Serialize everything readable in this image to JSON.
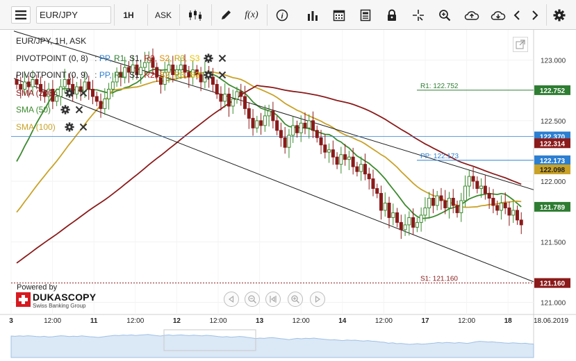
{
  "toolbar": {
    "symbol": "EUR/JPY",
    "timeframe": "1H",
    "side": "ASK",
    "fx_label": "f(x)"
  },
  "chart_header": {
    "title": "EUR/JPY, 1H, ASK"
  },
  "indicators": [
    {
      "name": "PIVOTPOINT (0, 8)",
      "colon": ":",
      "levels": [
        "PP,",
        "R1,",
        "S1,",
        "R2,",
        "S2,",
        "R3,",
        "S3"
      ],
      "colors": [
        "#2c7fd1",
        "#2e7d32",
        "#1f1f1f",
        "#b71c1c",
        "#e08a00",
        "#c9a400",
        "#e6c200"
      ]
    },
    {
      "name": "PIVOTPOINT (0, 9)",
      "colon": ":",
      "levels": [
        "PP,",
        "R1,",
        "S1,",
        "R2,",
        "S2,",
        "R3,",
        "S3"
      ],
      "colors": [
        "#2c7fd1",
        "#2e7d32",
        "#1f1f1f",
        "#b71c1c",
        "#e08a00",
        "#c9a400",
        "#e6c200"
      ]
    },
    {
      "name": "SMA (200)",
      "color": "#8b1a1a"
    },
    {
      "name": "SMA (50)",
      "color": "#3c8a2e"
    },
    {
      "name": "SMA (100)",
      "color": "#c9a227"
    }
  ],
  "branding": {
    "powered_by": "Powered by",
    "name": "DUKASCOPY",
    "sub": "Swiss Banking Group"
  },
  "colors": {
    "candle_up": "#3c8a2e",
    "candle_down": "#8b1a1a",
    "sma200": "#8b1a1a",
    "sma50": "#3c8a2e",
    "sma100": "#c9a227",
    "pivot_r1": "#2e7d32",
    "pivot_pp": "#2c7fd1",
    "pivot_s1": "#8b1a1a",
    "price_line": "#2c7fd1",
    "trend_line": "#1a1a1a"
  },
  "chart_data": {
    "type": "candlestick",
    "ylim": [
      120.9,
      123.25
    ],
    "y_ticks": [
      "123.000",
      "122.500",
      "122.000",
      "121.500",
      "121.000"
    ],
    "y_tick_values": [
      123.0,
      122.5,
      122.0,
      121.5,
      121.0
    ],
    "x_ticks": [
      "3",
      "12:00",
      "11",
      "12:00",
      "12",
      "12:00",
      "13",
      "12:00",
      "14",
      "12:00",
      "17",
      "12:00",
      "18",
      "18.06.2019"
    ],
    "x_tick_bold": [
      true,
      false,
      true,
      false,
      true,
      false,
      true,
      false,
      true,
      false,
      true,
      false,
      true,
      false
    ],
    "price_labels": [
      {
        "text": "122.752",
        "value": 122.752,
        "bg": "#2e7d32",
        "fg": "#ffffff"
      },
      {
        "text": "122.370",
        "value": 122.37,
        "bg": "#2c7fd1",
        "fg": "#ffffff"
      },
      {
        "text": "122.314",
        "value": 122.314,
        "bg": "#8b1a1a",
        "fg": "#ffffff"
      },
      {
        "text": "122.173",
        "value": 122.173,
        "bg": "#2c7fd1",
        "fg": "#ffffff"
      },
      {
        "text": "122.098",
        "value": 122.098,
        "bg": "#c9a227",
        "fg": "#222222"
      },
      {
        "text": "121.789",
        "value": 121.789,
        "bg": "#2e7d32",
        "fg": "#ffffff"
      },
      {
        "text": "121.160",
        "value": 121.16,
        "bg": "#8b1a1a",
        "fg": "#ffffff"
      }
    ],
    "pivot_lines": [
      {
        "label": "R1: 122.752",
        "value": 122.752,
        "color": "#2e7d32"
      },
      {
        "label": "PP: 122.173",
        "value": 122.173,
        "color": "#2c7fd1"
      },
      {
        "label": "S1: 121.160",
        "value": 121.16,
        "color": "#8b1a1a"
      }
    ],
    "current_price": 122.37,
    "candles_close": [
      122.8,
      122.76,
      122.82,
      122.78,
      122.84,
      122.8,
      122.74,
      122.7,
      122.76,
      122.66,
      122.7,
      122.78,
      122.84,
      122.8,
      122.72,
      122.78,
      122.74,
      122.82,
      122.76,
      122.7,
      122.66,
      122.6,
      122.68,
      122.76,
      122.82,
      122.9,
      122.86,
      122.94,
      122.9,
      122.96,
      122.88,
      122.94,
      122.98,
      123.02,
      122.94,
      122.86,
      122.8,
      122.9,
      122.96,
      122.88,
      122.92,
      122.96,
      122.9,
      122.86,
      122.92,
      122.88,
      122.82,
      122.9,
      122.86,
      122.8,
      122.72,
      122.66,
      122.72,
      122.62,
      122.68,
      122.74,
      122.7,
      122.6,
      122.52,
      122.44,
      122.5,
      122.46,
      122.54,
      122.58,
      122.5,
      122.42,
      122.36,
      122.28,
      122.38,
      122.46,
      122.4,
      122.48,
      122.44,
      122.5,
      122.42,
      122.36,
      122.3,
      122.24,
      122.26,
      122.2,
      122.14,
      122.22,
      122.18,
      122.2,
      122.12,
      122.08,
      122.14,
      122.06,
      122.02,
      121.94,
      121.9,
      121.76,
      121.82,
      121.7,
      121.74,
      121.66,
      121.6,
      121.64,
      121.7,
      121.62,
      121.66,
      121.72,
      121.78,
      121.86,
      121.8,
      121.88,
      121.84,
      121.78,
      121.86,
      121.8,
      121.74,
      121.84,
      121.96,
      122.04,
      122.0,
      121.94,
      121.96,
      121.9,
      121.86,
      121.8,
      121.76,
      121.82,
      121.78,
      121.72,
      121.76,
      121.68,
      121.64
    ]
  }
}
